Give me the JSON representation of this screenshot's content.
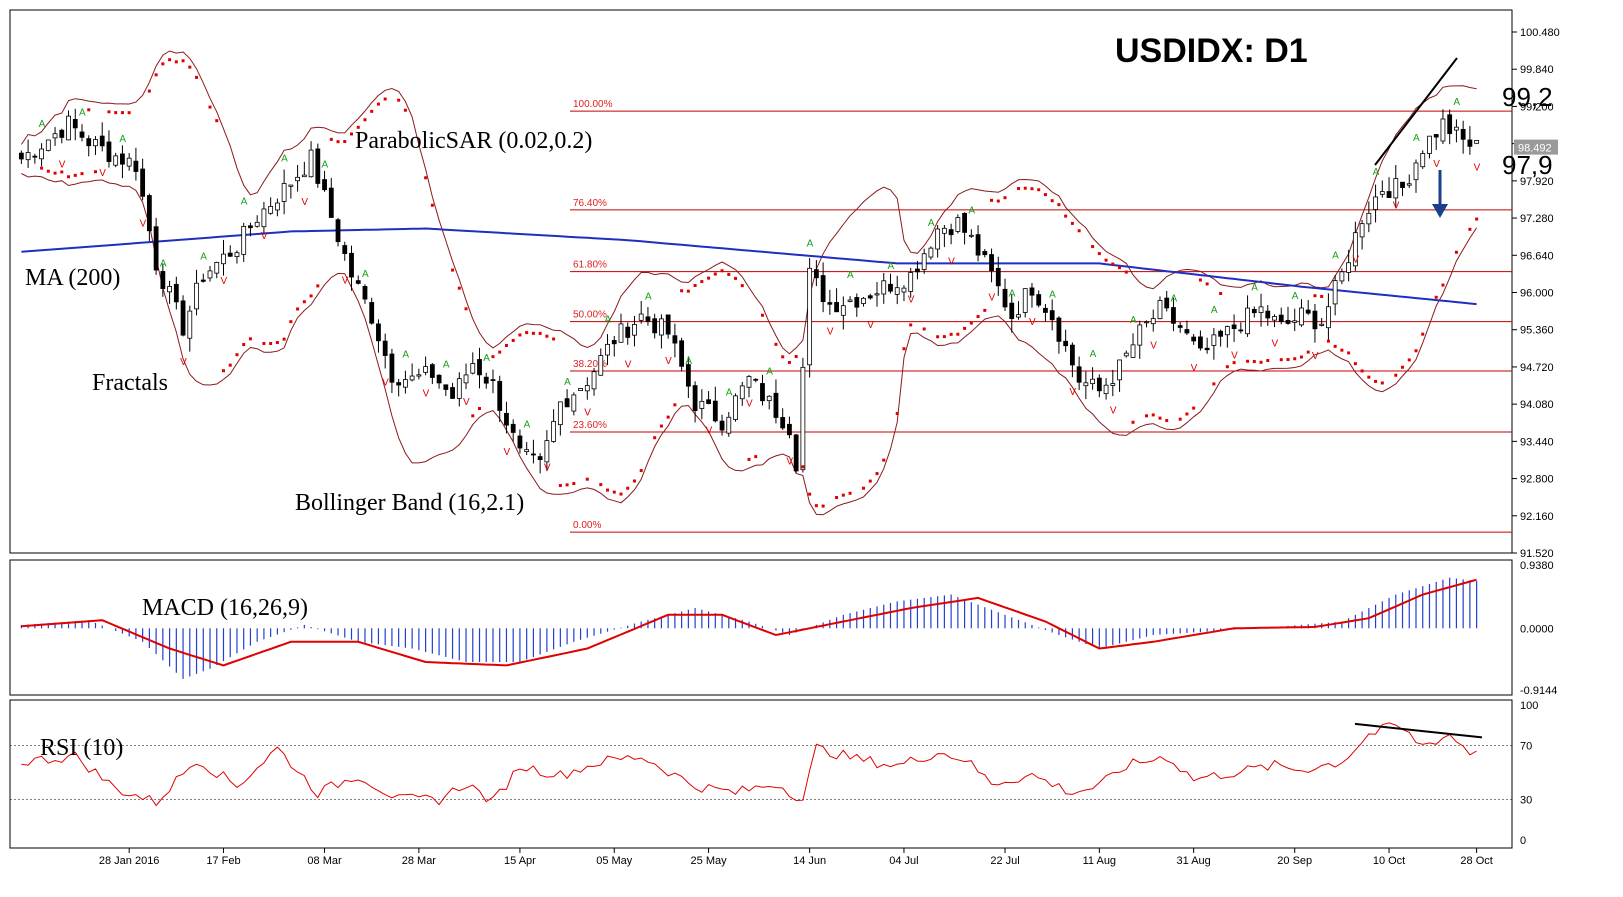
{
  "chart_data": {
    "type": "candlestick",
    "title": "USDIDX: D1",
    "current_price_label": "98.492",
    "price_axis": {
      "ylim": [
        91.52,
        100.48
      ],
      "ticks": [
        "100.480",
        "99.840",
        "99.200",
        "98.560",
        "97.920",
        "97.280",
        "96.640",
        "96.000",
        "95.360",
        "94.720",
        "94.080",
        "93.440",
        "92.800",
        "92.160",
        "91.520"
      ]
    },
    "date_axis": [
      "28 Jan 2016",
      "17 Feb",
      "08 Mar",
      "28 Mar",
      "15 Apr",
      "05 May",
      "25 May",
      "14 Jun",
      "04 Jul",
      "22 Jul",
      "11 Aug",
      "31 Aug",
      "20 Sep",
      "10 Oct",
      "28 Oct"
    ],
    "indicators": {
      "ma": "MA (200)",
      "sar": "ParabolicSAR (0.02,0.2)",
      "fractals": "Fractals",
      "bollinger": "Bollinger Band (16,2.1)",
      "macd": "MACD (16,26,9)",
      "rsi": "RSI (10)"
    },
    "fibonacci_levels": [
      {
        "label": "100.00%",
        "price": 99.12
      },
      {
        "label": "76.40%",
        "price": 97.42
      },
      {
        "label": "61.80%",
        "price": 96.36
      },
      {
        "label": "50.00%",
        "price": 95.5
      },
      {
        "label": "38.20%",
        "price": 94.65
      },
      {
        "label": "23.60%",
        "price": 93.6
      },
      {
        "label": "0.00%",
        "price": 91.88
      }
    ],
    "price_annotations": [
      "99,2",
      "97,9"
    ],
    "price_keypoints": [
      [
        0,
        98.3
      ],
      [
        7,
        98.9
      ],
      [
        10,
        98.6
      ],
      [
        13,
        98.4
      ],
      [
        17,
        98.2
      ],
      [
        20,
        96.5
      ],
      [
        24,
        95.4
      ],
      [
        27,
        96.3
      ],
      [
        32,
        96.8
      ],
      [
        35,
        97.3
      ],
      [
        40,
        97.9
      ],
      [
        43,
        98.3
      ],
      [
        46,
        97.3
      ],
      [
        49,
        96.3
      ],
      [
        52,
        95.6
      ],
      [
        55,
        94.6
      ],
      [
        58,
        94.5
      ],
      [
        61,
        94.6
      ],
      [
        64,
        94.2
      ],
      [
        67,
        94.8
      ],
      [
        70,
        94.4
      ],
      [
        74,
        93.2
      ],
      [
        77,
        93.0
      ],
      [
        80,
        94.1
      ],
      [
        84,
        94.5
      ],
      [
        88,
        95.2
      ],
      [
        92,
        95.6
      ],
      [
        96,
        95.3
      ],
      [
        100,
        94.1
      ],
      [
        104,
        93.8
      ],
      [
        108,
        94.5
      ],
      [
        111,
        94.1
      ],
      [
        114,
        93.7
      ],
      [
        115,
        93.1
      ],
      [
        117,
        96.3
      ],
      [
        120,
        95.8
      ],
      [
        124,
        95.9
      ],
      [
        128,
        96.1
      ],
      [
        132,
        96.3
      ],
      [
        136,
        97.1
      ],
      [
        139,
        97.2
      ],
      [
        141,
        96.9
      ],
      [
        144,
        96.3
      ],
      [
        147,
        95.6
      ],
      [
        150,
        96.1
      ],
      [
        153,
        95.6
      ],
      [
        157,
        94.5
      ],
      [
        160,
        94.3
      ],
      [
        163,
        94.7
      ],
      [
        166,
        95.3
      ],
      [
        169,
        95.7
      ],
      [
        172,
        95.4
      ],
      [
        175,
        94.9
      ],
      [
        178,
        95.2
      ],
      [
        181,
        95.5
      ],
      [
        184,
        95.7
      ],
      [
        187,
        95.4
      ],
      [
        190,
        95.6
      ],
      [
        193,
        95.5
      ],
      [
        196,
        96.3
      ],
      [
        199,
        97.3
      ],
      [
        202,
        97.8
      ],
      [
        205,
        97.8
      ],
      [
        208,
        98.5
      ],
      [
        211,
        98.9
      ],
      [
        214,
        98.6
      ],
      [
        216,
        98.5
      ]
    ],
    "macd_axis": {
      "ticks": [
        "0.9380",
        "0.0000",
        "-0.9144"
      ],
      "range": [
        -0.9144,
        0.938
      ]
    },
    "macd_keypoints": [
      [
        0,
        0.05
      ],
      [
        10,
        0.12
      ],
      [
        18,
        -0.2
      ],
      [
        24,
        -0.75
      ],
      [
        28,
        -0.6
      ],
      [
        35,
        -0.2
      ],
      [
        42,
        0.05
      ],
      [
        50,
        -0.2
      ],
      [
        58,
        -0.3
      ],
      [
        66,
        -0.5
      ],
      [
        74,
        -0.5
      ],
      [
        82,
        -0.2
      ],
      [
        92,
        0.1
      ],
      [
        100,
        0.3
      ],
      [
        108,
        0.1
      ],
      [
        114,
        -0.1
      ],
      [
        122,
        0.2
      ],
      [
        130,
        0.4
      ],
      [
        138,
        0.5
      ],
      [
        146,
        0.2
      ],
      [
        154,
        -0.1
      ],
      [
        160,
        -0.3
      ],
      [
        168,
        -0.1
      ],
      [
        176,
        -0.05
      ],
      [
        186,
        0.02
      ],
      [
        196,
        0.1
      ],
      [
        204,
        0.5
      ],
      [
        212,
        0.75
      ],
      [
        216,
        0.7
      ]
    ],
    "macd_signal_keypoints": [
      [
        0,
        0.03
      ],
      [
        12,
        0.12
      ],
      [
        22,
        -0.3
      ],
      [
        30,
        -0.55
      ],
      [
        40,
        -0.2
      ],
      [
        50,
        -0.2
      ],
      [
        60,
        -0.5
      ],
      [
        72,
        -0.55
      ],
      [
        84,
        -0.3
      ],
      [
        96,
        0.2
      ],
      [
        104,
        0.2
      ],
      [
        112,
        -0.1
      ],
      [
        122,
        0.1
      ],
      [
        132,
        0.3
      ],
      [
        142,
        0.45
      ],
      [
        152,
        0.1
      ],
      [
        160,
        -0.3
      ],
      [
        168,
        -0.2
      ],
      [
        180,
        0
      ],
      [
        192,
        0.02
      ],
      [
        200,
        0.15
      ],
      [
        208,
        0.5
      ],
      [
        216,
        0.72
      ]
    ],
    "rsi_axis": {
      "ticks": [
        "100",
        "70",
        "30",
        "0"
      ],
      "levels": [
        70,
        30
      ]
    },
    "rsi_keypoints": [
      [
        0,
        58
      ],
      [
        8,
        62
      ],
      [
        14,
        38
      ],
      [
        20,
        28
      ],
      [
        26,
        60
      ],
      [
        32,
        40
      ],
      [
        38,
        68
      ],
      [
        44,
        35
      ],
      [
        50,
        48
      ],
      [
        56,
        30
      ],
      [
        62,
        30
      ],
      [
        66,
        42
      ],
      [
        70,
        28
      ],
      [
        74,
        55
      ],
      [
        80,
        48
      ],
      [
        86,
        58
      ],
      [
        92,
        62
      ],
      [
        100,
        40
      ],
      [
        106,
        35
      ],
      [
        112,
        42
      ],
      [
        116,
        30
      ],
      [
        118,
        68
      ],
      [
        124,
        60
      ],
      [
        130,
        55
      ],
      [
        136,
        65
      ],
      [
        140,
        60
      ],
      [
        144,
        42
      ],
      [
        150,
        48
      ],
      [
        156,
        35
      ],
      [
        160,
        40
      ],
      [
        164,
        55
      ],
      [
        170,
        62
      ],
      [
        174,
        45
      ],
      [
        180,
        50
      ],
      [
        186,
        55
      ],
      [
        190,
        52
      ],
      [
        196,
        58
      ],
      [
        200,
        78
      ],
      [
        204,
        85
      ],
      [
        208,
        70
      ],
      [
        212,
        78
      ],
      [
        215,
        65
      ],
      [
        216,
        66
      ]
    ]
  }
}
